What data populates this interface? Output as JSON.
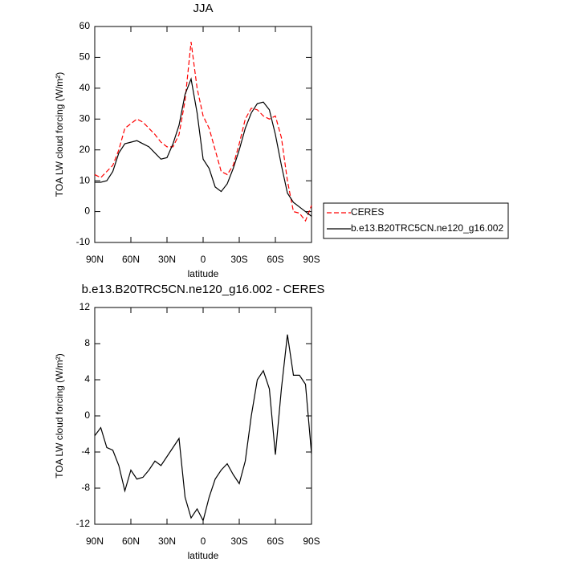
{
  "chart_data": [
    {
      "type": "line",
      "title": "JJA",
      "xlabel": "latitude",
      "ylabel": "TOA LW cloud forcing (W/m²)",
      "x": [
        90,
        85,
        80,
        75,
        70,
        65,
        60,
        55,
        50,
        45,
        40,
        35,
        30,
        25,
        20,
        15,
        10,
        5,
        0,
        -5,
        -10,
        -15,
        -20,
        -25,
        -30,
        -35,
        -40,
        -45,
        -50,
        -55,
        -60,
        -65,
        -70,
        -75,
        -80,
        -85,
        -90
      ],
      "series": [
        {
          "name": "CERES",
          "color": "#ff0000",
          "dashed": true,
          "values": [
            12,
            11,
            13,
            15,
            20,
            27,
            28.5,
            30,
            29,
            27,
            25,
            22.5,
            21,
            21,
            25,
            36,
            55,
            40,
            31,
            27,
            20,
            13,
            12,
            15,
            22,
            30,
            33.5,
            33,
            31,
            30,
            31,
            24,
            10,
            0,
            -0.5,
            -3,
            2
          ]
        },
        {
          "name": "b.e13.B20TRC5CN.ne120_g16.002",
          "color": "#000000",
          "dashed": false,
          "values": [
            9.5,
            9.5,
            10,
            13,
            19,
            22,
            22.5,
            23,
            22,
            21,
            19,
            17,
            17.5,
            22,
            28,
            38,
            43,
            32,
            17,
            14,
            8,
            6.5,
            9,
            14,
            20,
            27,
            32,
            35,
            35.5,
            33,
            25,
            15,
            6,
            3,
            1.5,
            0,
            -1.5
          ]
        }
      ],
      "xlim": [
        90,
        -90
      ],
      "xticks": [
        {
          "value": 90,
          "label": "90N"
        },
        {
          "value": 60,
          "label": "60N"
        },
        {
          "value": 30,
          "label": "30N"
        },
        0,
        {
          "value": -30,
          "label": "30S"
        },
        {
          "value": -60,
          "label": "60S"
        },
        {
          "value": -90,
          "label": "90S"
        }
      ],
      "ylim": [
        -10,
        60
      ],
      "yticks": [
        -10,
        0,
        10,
        20,
        30,
        40,
        50,
        60
      ],
      "legend": "outside-right"
    },
    {
      "type": "line",
      "title": "b.e13.B20TRC5CN.ne120_g16.002 - CERES",
      "xlabel": "latitude",
      "ylabel": "TOA LW cloud forcing (W/m²)",
      "x": [
        90,
        85,
        80,
        75,
        70,
        65,
        60,
        55,
        50,
        45,
        40,
        35,
        30,
        25,
        20,
        15,
        10,
        5,
        0,
        -5,
        -10,
        -15,
        -20,
        -25,
        -30,
        -35,
        -40,
        -45,
        -50,
        -55,
        -60,
        -65,
        -70,
        -75,
        -80,
        -85,
        -90
      ],
      "values": [
        -2.2,
        -1.3,
        -3.5,
        -3.8,
        -5.5,
        -8.3,
        -6,
        -7,
        -6.8,
        -6,
        -5,
        -5.5,
        -4.5,
        -3.5,
        -2.5,
        -9,
        -11.3,
        -10.3,
        -11.6,
        -9,
        -7,
        -6,
        -5.3,
        -6.5,
        -7.5,
        -5,
        0,
        4,
        5,
        3,
        -4.3,
        3,
        9,
        4.5,
        4.5,
        3.5,
        -4.2
      ],
      "color": "#000000",
      "xlim": [
        90,
        -90
      ],
      "xticks": [
        {
          "value": 90,
          "label": "90N"
        },
        {
          "value": 60,
          "label": "60N"
        },
        {
          "value": 30,
          "label": "30N"
        },
        0,
        {
          "value": -30,
          "label": "30S"
        },
        {
          "value": -60,
          "label": "60S"
        },
        {
          "value": -90,
          "label": "90S"
        }
      ],
      "ylim": [
        -12,
        12
      ],
      "yticks": [
        -12,
        -8,
        -4,
        0,
        4,
        8,
        12
      ]
    }
  ]
}
